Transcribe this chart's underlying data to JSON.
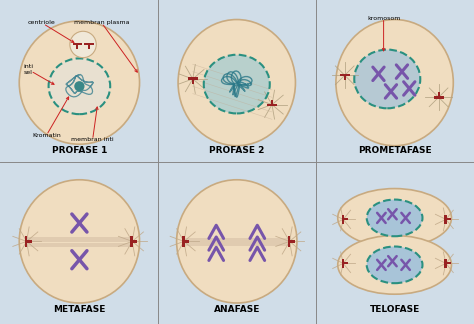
{
  "background_color": "#d0dde8",
  "cell_fill": "#f0ddc0",
  "cell_edge": "#c8aa80",
  "nucleus_dashed_color": "#2a9080",
  "chromatin_color": "#2a7888",
  "chromosome_color": "#7755aa",
  "centriole_color": "#992222",
  "spindle_color": "#c0a890",
  "arrow_color": "#cc2222",
  "label_color": "#222222",
  "nucleus_light": "#e8dcc8",
  "nucleus_blue": "#b8cce4",
  "nucleus_teal_fill": "#c8ddd8",
  "figsize": [
    4.74,
    3.24
  ],
  "dpi": 100,
  "labels": [
    "PROFASE 1",
    "PROFASE 2",
    "PROMETAFASE",
    "METAFASE",
    "ANAFASE",
    "TELOFASE"
  ]
}
